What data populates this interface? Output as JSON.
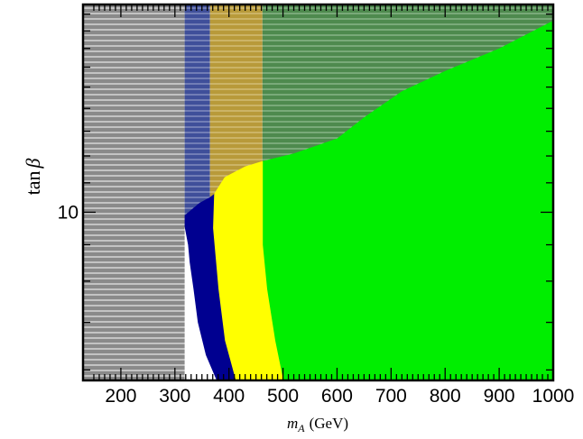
{
  "chart_data": {
    "type": "area",
    "title": "",
    "xlabel_math": "m",
    "xlabel_sub": "A",
    "xlabel_unit": "(GeV)",
    "ylabel_prefix": "tan",
    "ylabel_symbol": "β",
    "x_scale": "linear",
    "y_scale": "log",
    "xlim": [
      130,
      1000
    ],
    "ylim": [
      5.8,
      19.6
    ],
    "x_ticks": [
      200,
      300,
      400,
      500,
      600,
      700,
      800,
      900,
      1000
    ],
    "x_tick_labels": [
      "200",
      "300",
      "400",
      "500",
      "600",
      "700",
      "800",
      "900",
      "1000"
    ],
    "y_ticks": [
      10
    ],
    "y_tick_labels": [
      "10"
    ],
    "grid": false,
    "regions": [
      {
        "color": "#00ee00",
        "polygon": [
          [
            500,
            5.8
          ],
          [
            485,
            6.6
          ],
          [
            470,
            7.8
          ],
          [
            462,
            9
          ],
          [
            462,
            11.8
          ],
          [
            520,
            12.1
          ],
          [
            600,
            12.7
          ],
          [
            650,
            13.6
          ],
          [
            720,
            14.8
          ],
          [
            800,
            15.8
          ],
          [
            900,
            17.0
          ],
          [
            1000,
            18.6
          ],
          [
            1000,
            5.8
          ]
        ]
      },
      {
        "color": "#ffff00",
        "polygon": [
          [
            412,
            5.8
          ],
          [
            392,
            6.6
          ],
          [
            380,
            7.8
          ],
          [
            370,
            9.5
          ],
          [
            372,
            10.6
          ],
          [
            392,
            11.2
          ],
          [
            430,
            11.6
          ],
          [
            462,
            11.8
          ],
          [
            462,
            9
          ],
          [
            470,
            7.8
          ],
          [
            485,
            6.6
          ],
          [
            500,
            5.8
          ]
        ]
      },
      {
        "color": "#000090",
        "polygon": [
          [
            378,
            5.8
          ],
          [
            358,
            6.3
          ],
          [
            343,
            7.0
          ],
          [
            335,
            7.8
          ],
          [
            328,
            8.5
          ],
          [
            325,
            9.0
          ],
          [
            318,
            9.6
          ],
          [
            318,
            9.9
          ],
          [
            345,
            10.3
          ],
          [
            372,
            10.6
          ],
          [
            370,
            9.5
          ],
          [
            380,
            7.8
          ],
          [
            392,
            6.6
          ],
          [
            412,
            5.8
          ]
        ]
      },
      {
        "color": "#ffffff",
        "polygon": [
          [
            140,
            8.1
          ],
          [
            148,
            7.6
          ],
          [
            152,
            7.2
          ],
          [
            146,
            6.8
          ],
          [
            165,
            6.8
          ],
          [
            172,
            7.3
          ],
          [
            176,
            7.1
          ],
          [
            190,
            7.0
          ],
          [
            200,
            6.95
          ],
          [
            212,
            6.8
          ],
          [
            218,
            6.4
          ],
          [
            225,
            6.0
          ],
          [
            235,
            6.15
          ],
          [
            245,
            6.6
          ],
          [
            258,
            6.8
          ],
          [
            265,
            6.9
          ],
          [
            275,
            7.2
          ],
          [
            290,
            7.8
          ],
          [
            305,
            8.8
          ],
          [
            310,
            9.4
          ],
          [
            300,
            9.8
          ],
          [
            290,
            9.7
          ],
          [
            275,
            9.55
          ],
          [
            260,
            9.6
          ],
          [
            255,
            9.8
          ],
          [
            228,
            9.9
          ],
          [
            222,
            9.5
          ],
          [
            210,
            9.2
          ],
          [
            195,
            8.8
          ],
          [
            175,
            8.6
          ],
          [
            165,
            8.3
          ],
          [
            150,
            8.4
          ]
        ]
      }
    ],
    "hatched_regions": [
      {
        "pattern": "gray",
        "polygon": [
          [
            130,
            5.8
          ],
          [
            130,
            19.6
          ],
          [
            318,
            19.6
          ],
          [
            318,
            5.8
          ]
        ]
      },
      {
        "pattern": "blue",
        "polygon": [
          [
            318,
            9.9
          ],
          [
            345,
            10.3
          ],
          [
            365,
            10.5
          ],
          [
            365,
            19.6
          ],
          [
            318,
            19.6
          ]
        ]
      },
      {
        "pattern": "orange",
        "polygon": [
          [
            365,
            10.5
          ],
          [
            372,
            10.6
          ],
          [
            392,
            11.2
          ],
          [
            430,
            11.6
          ],
          [
            462,
            11.8
          ],
          [
            462,
            19.6
          ],
          [
            365,
            19.6
          ]
        ]
      },
      {
        "pattern": "green",
        "polygon": [
          [
            462,
            11.8
          ],
          [
            520,
            12.1
          ],
          [
            600,
            12.7
          ],
          [
            650,
            13.6
          ],
          [
            720,
            14.8
          ],
          [
            800,
            15.8
          ],
          [
            900,
            17.0
          ],
          [
            1000,
            18.6
          ],
          [
            1000,
            19.6
          ],
          [
            462,
            19.6
          ]
        ]
      }
    ],
    "colors": {
      "green": "#00ee00",
      "yellow": "#ffff00",
      "navy": "#000090",
      "gray_hatch": "#8a8a8a",
      "blue_hatch": "#3f4f9a",
      "orange_hatch": "#b89a3a",
      "green_hatch": "#4e8a4e"
    }
  }
}
